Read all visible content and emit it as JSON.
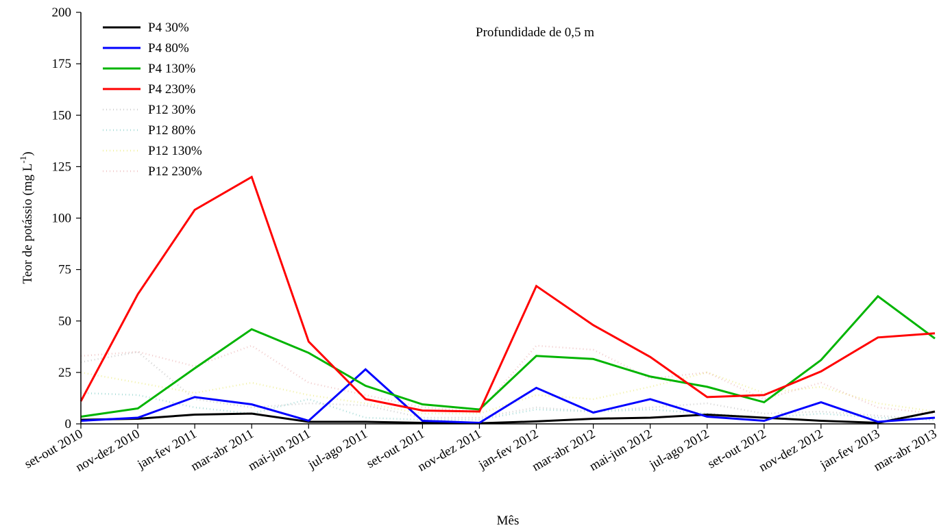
{
  "chart_data": {
    "type": "line",
    "title": "",
    "annotation": "Profundidade de 0,5 m",
    "xlabel": "Mês",
    "ylabel": "Teor de potássio (mg L-1)",
    "ylabel_parts": {
      "main": "Teor de potássio (mg L",
      "sup": "-1",
      "close": ")"
    },
    "ylim": [
      0,
      200
    ],
    "yticks": [
      "0",
      "25",
      "50",
      "75",
      "100",
      "125",
      "150",
      "175",
      "200"
    ],
    "grid": false,
    "legend_position": "top-left",
    "categories": [
      "set-out 2010",
      "nov-dez 2010",
      "jan-fev 2011",
      "mar-abr 2011",
      "mai-jun 2011",
      "jul-ago 2011",
      "set-out 2011",
      "nov-dez 2011",
      "jan-fev 2012",
      "mar-abr 2012",
      "mai-jun 2012",
      "jul-ago 2012",
      "set-out 2012",
      "nov-dez 2012",
      "jan-fev 2013",
      "mar-abr 2013"
    ],
    "series": [
      {
        "name": "P4 30%",
        "color": "#000000",
        "style": "solid",
        "values": [
          2,
          2.5,
          4.5,
          5,
          1,
          1,
          0.5,
          0.3,
          1.2,
          2.5,
          3,
          4.5,
          3,
          1.5,
          0.5,
          6
        ]
      },
      {
        "name": "P4 80%",
        "color": "#0000ff",
        "style": "solid",
        "values": [
          1.5,
          3,
          13,
          9.5,
          1.5,
          26.5,
          1.5,
          0.5,
          17.5,
          5.5,
          12,
          3.5,
          1.5,
          10.5,
          1,
          3
        ]
      },
      {
        "name": "P4 130%",
        "color": "#00b400",
        "style": "solid",
        "values": [
          3.5,
          7.5,
          27,
          46,
          34.5,
          18.5,
          9.5,
          7,
          33,
          31.5,
          23,
          18,
          10.5,
          31,
          62,
          41.5
        ]
      },
      {
        "name": "P4 230%",
        "color": "#ff0000",
        "style": "solid",
        "values": [
          11,
          63,
          104,
          120,
          40,
          12,
          6.5,
          6,
          67,
          48,
          32.5,
          13,
          14,
          25.5,
          42,
          44
        ]
      },
      {
        "name": "P12 30%",
        "color": "#d0d0d0",
        "style": "dotted",
        "values": [
          30,
          35,
          12,
          8,
          10,
          9,
          3,
          3,
          8,
          6,
          8,
          10,
          5,
          6,
          4,
          2
        ]
      },
      {
        "name": "P12 80%",
        "color": "#a8dcd8",
        "style": "dotted",
        "values": [
          15,
          14,
          8,
          5,
          12,
          3,
          2,
          2,
          7,
          6,
          7,
          5,
          3,
          5,
          3,
          2
        ]
      },
      {
        "name": "P12 130%",
        "color": "#f0f0a0",
        "style": "dotted",
        "values": [
          25,
          20,
          15,
          20,
          14,
          10,
          5,
          5,
          14,
          12,
          18,
          25,
          15,
          18,
          10,
          6
        ]
      },
      {
        "name": "P12 230%",
        "color": "#f0c8c8",
        "style": "dotted",
        "values": [
          33,
          35,
          28,
          38,
          20,
          14,
          8,
          6,
          38,
          36,
          22,
          25,
          12,
          20,
          8,
          5
        ]
      }
    ]
  }
}
